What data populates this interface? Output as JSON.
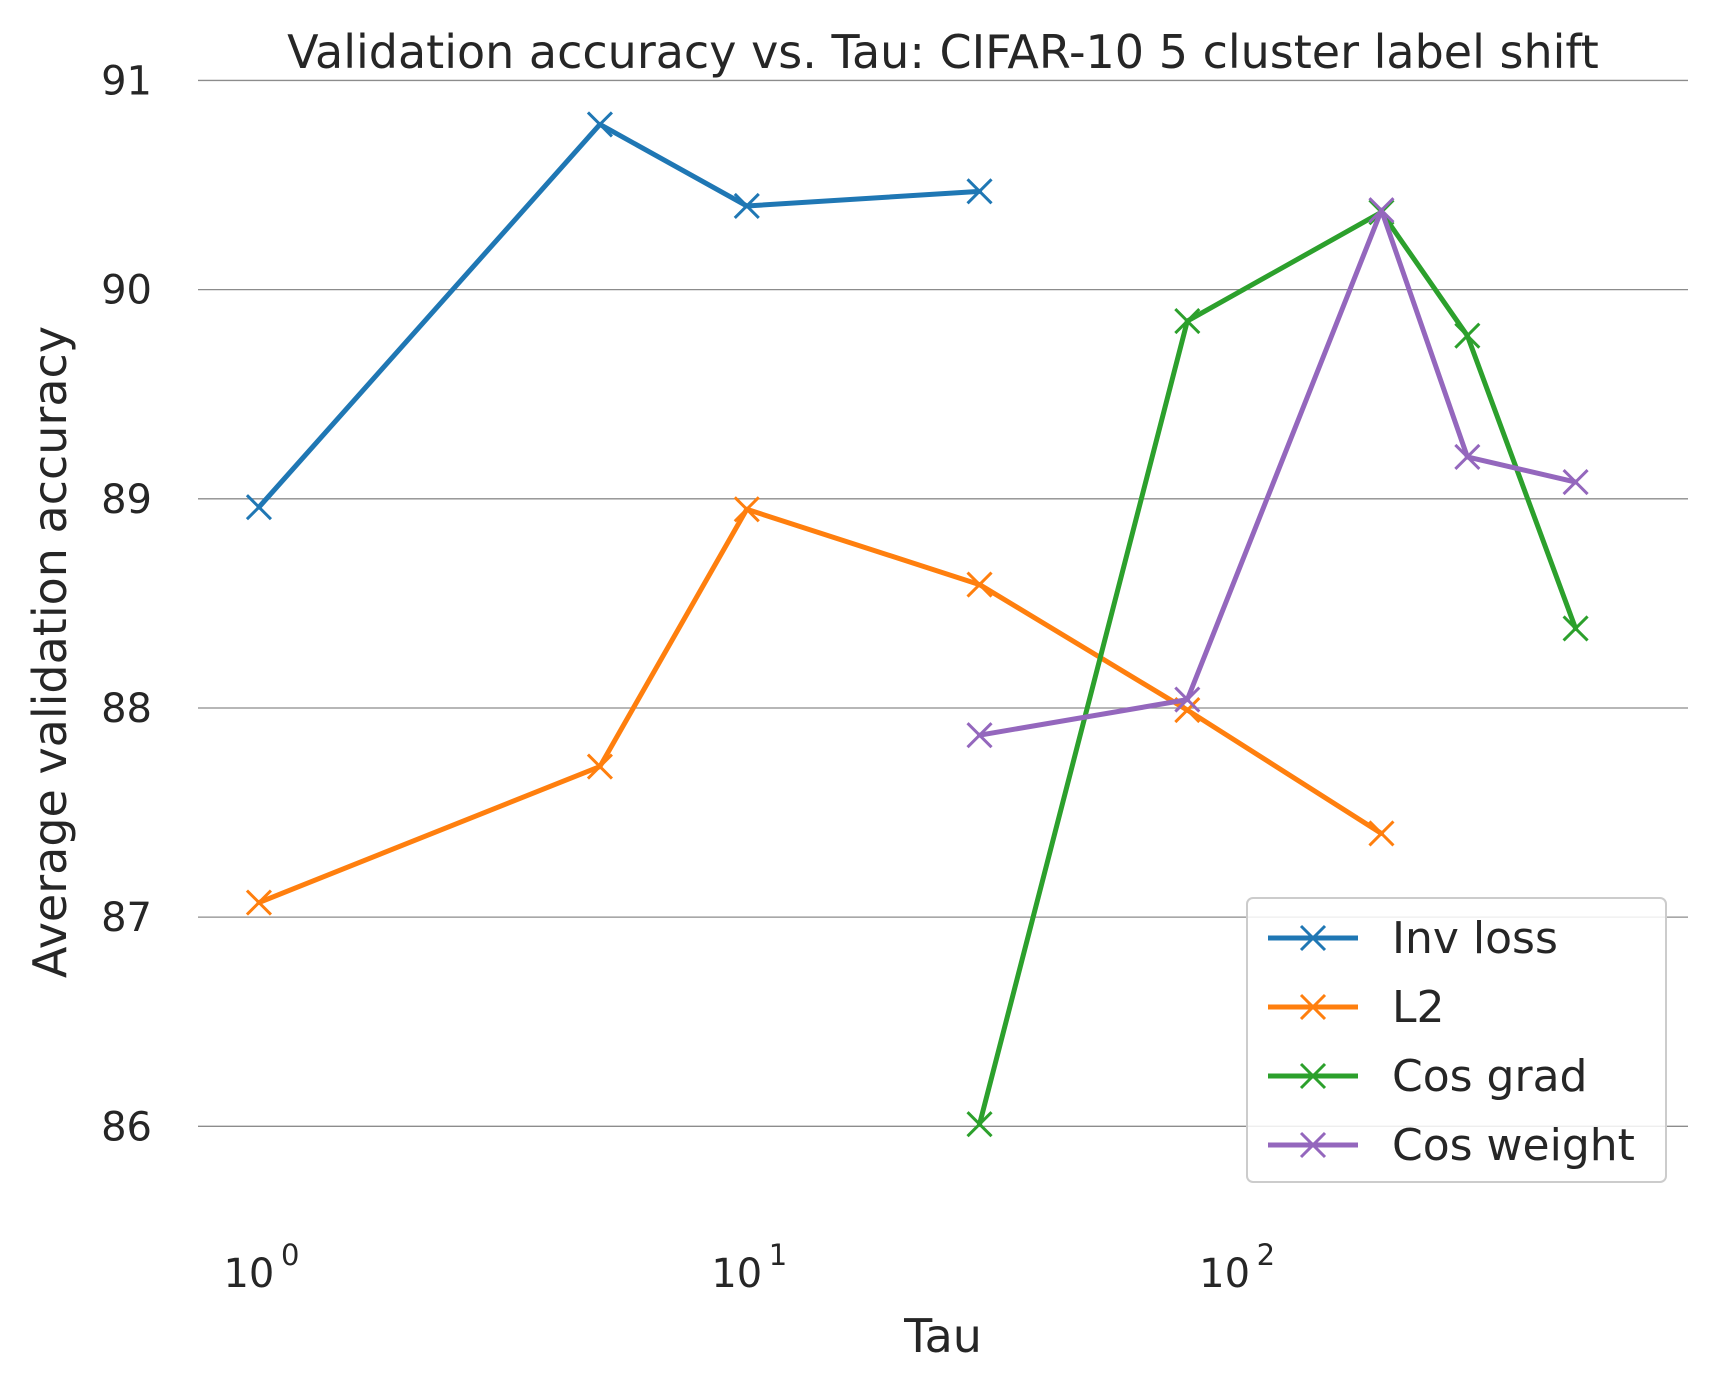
{
  "chart_data": {
    "type": "line",
    "title": "Validation accuracy vs. Tau: CIFAR-10 5 cluster label shift",
    "xlabel": "Tau",
    "ylabel": "Average validation accuracy",
    "xscale": "log",
    "xlim": [
      0.75,
      850
    ],
    "ylim": [
      85.6,
      91.05
    ],
    "grid": "horizontal",
    "legend_position": "bottom-right",
    "xticks": [
      {
        "value": 1,
        "base": "10",
        "exp": "0"
      },
      {
        "value": 10,
        "base": "10",
        "exp": "1"
      },
      {
        "value": 100,
        "base": "10",
        "exp": "2"
      }
    ],
    "yticks": [
      "86",
      "87",
      "88",
      "89",
      "90",
      "91"
    ],
    "series": [
      {
        "name": "Inv loss",
        "color": "#1f77b4",
        "x": [
          1,
          5,
          10,
          30
        ],
        "y": [
          88.96,
          90.79,
          90.4,
          90.47
        ]
      },
      {
        "name": "L2",
        "color": "#ff7f0e",
        "x": [
          1,
          5,
          10,
          30,
          80,
          200
        ],
        "y": [
          87.07,
          87.72,
          88.95,
          88.59,
          87.99,
          87.4
        ]
      },
      {
        "name": "Cos grad",
        "color": "#2ca02c",
        "x": [
          30,
          80,
          200,
          300,
          500
        ],
        "y": [
          86.01,
          89.85,
          90.37,
          89.78,
          88.38
        ]
      },
      {
        "name": "Cos weight",
        "color": "#9467bd",
        "x": [
          30,
          80,
          200,
          300,
          500
        ],
        "y": [
          87.87,
          88.04,
          90.38,
          89.2,
          89.08
        ]
      }
    ]
  }
}
